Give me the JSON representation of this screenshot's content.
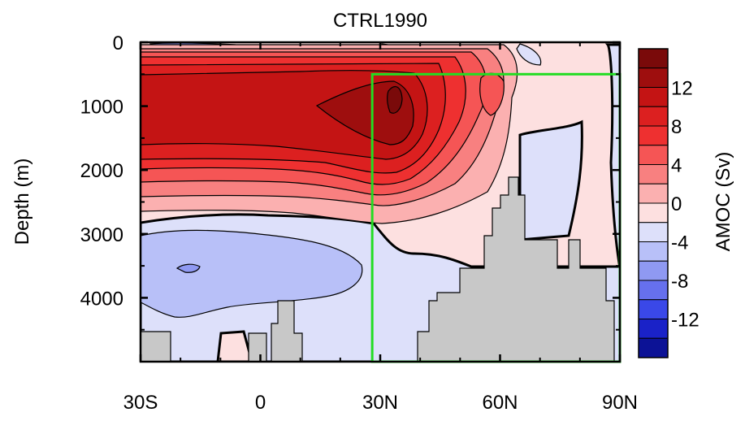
{
  "chart_data": {
    "type": "heatmap",
    "title": "CTRL1990",
    "ylabel": "Depth (m)",
    "xlabel": "",
    "x_ticks": [
      {
        "value": -30,
        "label": "30S"
      },
      {
        "value": 0,
        "label": "0"
      },
      {
        "value": 30,
        "label": "30N"
      },
      {
        "value": 60,
        "label": "60N"
      },
      {
        "value": 90,
        "label": "90N"
      }
    ],
    "y_ticks": [
      {
        "value": 0,
        "label": "0"
      },
      {
        "value": 1000,
        "label": "1000"
      },
      {
        "value": 2000,
        "label": "2000"
      },
      {
        "value": 3000,
        "label": "3000"
      },
      {
        "value": 4000,
        "label": "4000"
      }
    ],
    "xlim": [
      -30,
      90
    ],
    "ylim": [
      0,
      5000
    ],
    "y_inverted": true,
    "colorbar": {
      "label": "AMOC (Sv)",
      "levels": [
        16,
        14,
        12,
        10,
        8,
        6,
        4,
        2,
        0,
        -2,
        -4,
        -6,
        -8,
        -10,
        -12,
        -14,
        -16
      ],
      "colors": [
        "#7a0a0a",
        "#9e0e0e",
        "#c41414",
        "#dc2020",
        "#ee3030",
        "#f55555",
        "#f88080",
        "#fbb0b0",
        "#fde0e0",
        "#dde0fa",
        "#b8c0f8",
        "#8f99f2",
        "#6670ee",
        "#3a48e8",
        "#1a22c8",
        "#0c1296"
      ],
      "tick_labels": [
        {
          "value": 12,
          "label": "12"
        },
        {
          "value": 8,
          "label": "8"
        },
        {
          "value": 4,
          "label": "4"
        },
        {
          "value": 0,
          "label": "0"
        },
        {
          "value": -4,
          "label": "-4"
        },
        {
          "value": -8,
          "label": "-8"
        },
        {
          "value": -12,
          "label": "-12"
        }
      ]
    },
    "highlight_box": {
      "x": [
        28,
        90
      ],
      "y": [
        500,
        5000
      ],
      "color": "#22dd22"
    },
    "land_color": "#c8c8c8",
    "max_overturning": {
      "value": 16,
      "lat": 33,
      "depth": 800
    }
  }
}
